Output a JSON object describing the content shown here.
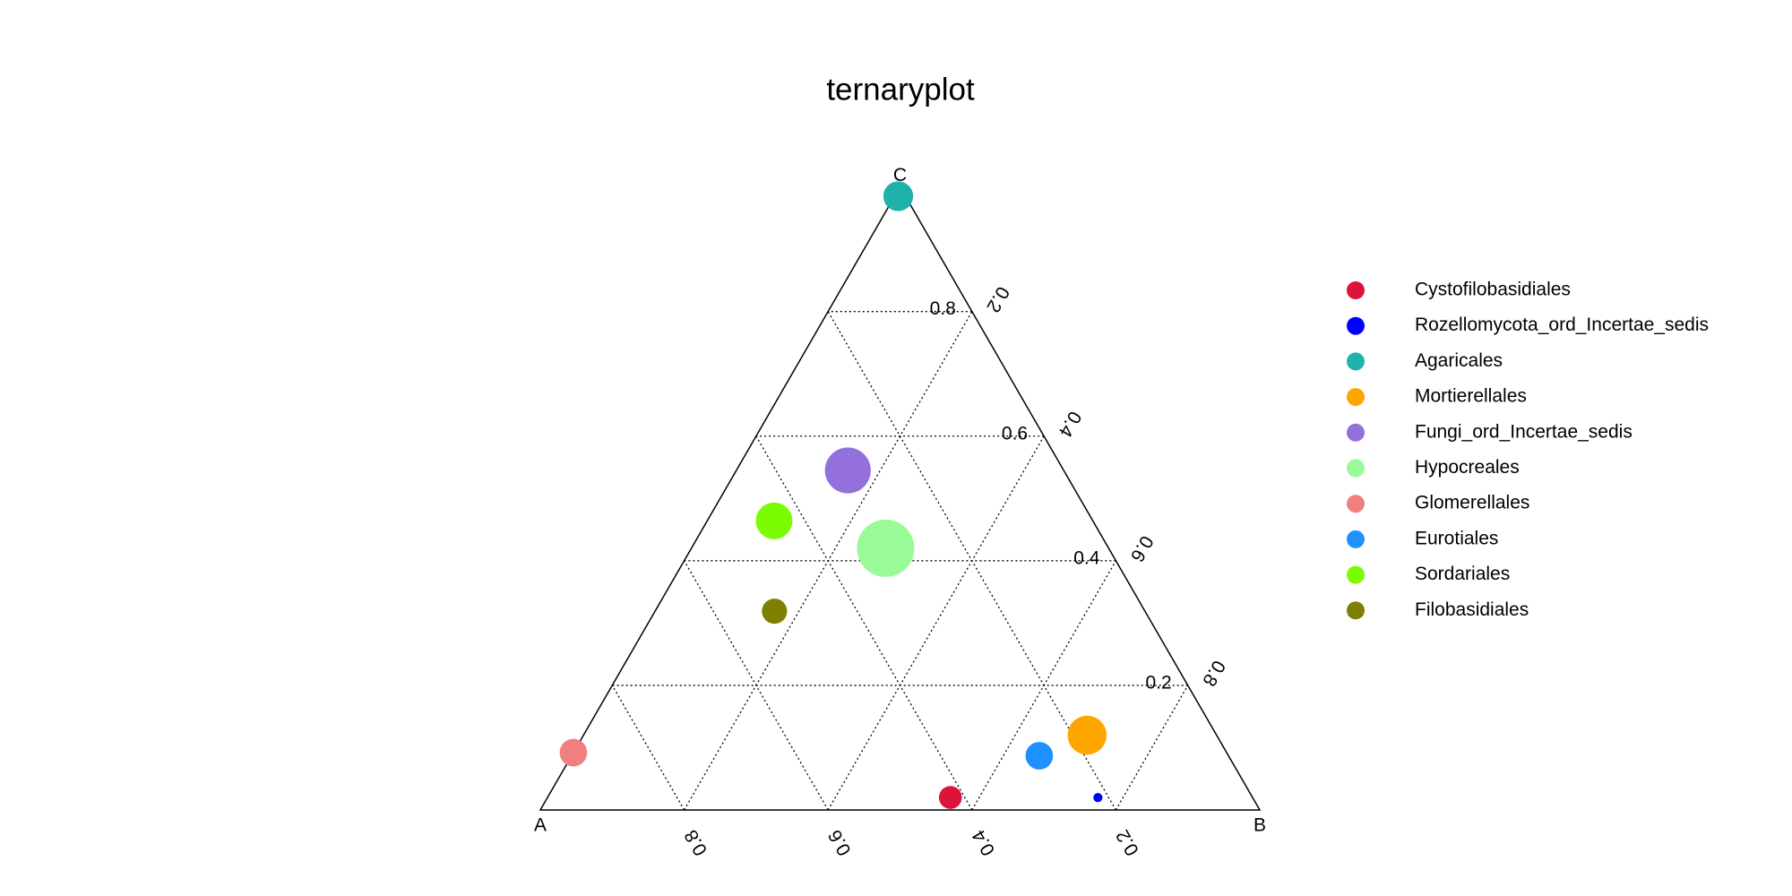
{
  "chart_data": {
    "type": "ternary",
    "title": "ternaryplot",
    "axis_labels": [
      "A",
      "B",
      "C"
    ],
    "ticks": [
      0.2,
      0.4,
      0.6,
      0.8
    ],
    "grid": true,
    "series": [
      {
        "name": "Cystofilobasidiales",
        "color": "#DC143C",
        "a": 0.42,
        "b": 0.56,
        "c": 0.02,
        "size": 10
      },
      {
        "name": "Rozellomycota_ord_Incertae_sedis",
        "color": "#0000FF",
        "a": 0.215,
        "b": 0.765,
        "c": 0.02,
        "size": 4
      },
      {
        "name": "Agaricales",
        "color": "#20B2AA",
        "a": 0.01,
        "b": 0.005,
        "c": 0.985,
        "size": 13
      },
      {
        "name": "Mortierellales",
        "color": "#FFA500",
        "a": 0.18,
        "b": 0.7,
        "c": 0.12,
        "size": 17
      },
      {
        "name": "Fungi_ord_Incertae_sedis",
        "color": "#9370DB",
        "a": 0.3,
        "b": 0.155,
        "c": 0.545,
        "size": 20
      },
      {
        "name": "Hypocreales",
        "color": "#98FB98",
        "a": 0.31,
        "b": 0.27,
        "c": 0.42,
        "size": 25
      },
      {
        "name": "Glomerellales",
        "color": "#F08080",
        "a": 0.908,
        "b": 0.0,
        "c": 0.092,
        "size": 12
      },
      {
        "name": "Eurotiales",
        "color": "#1E90FF",
        "a": 0.263,
        "b": 0.65,
        "c": 0.087,
        "size": 12
      },
      {
        "name": "Sordariales",
        "color": "#7CFC00",
        "a": 0.443,
        "b": 0.093,
        "c": 0.464,
        "size": 16
      },
      {
        "name": "Filobasidiales",
        "color": "#808000",
        "a": 0.515,
        "b": 0.166,
        "c": 0.319,
        "size": 11
      }
    ]
  }
}
